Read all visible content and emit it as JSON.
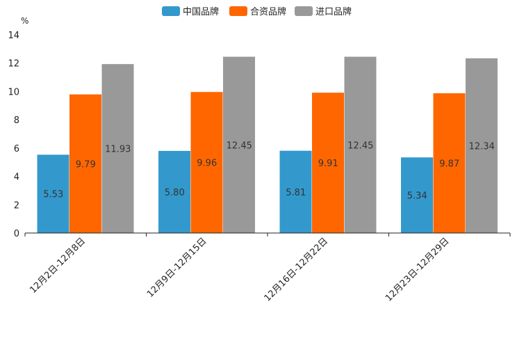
{
  "chart_data": {
    "type": "bar",
    "unit": "%",
    "ylim": [
      0,
      14
    ],
    "yticks": [
      0,
      2,
      4,
      6,
      8,
      10,
      12,
      14
    ],
    "legend_position": "top-center",
    "categories": [
      "12月2日-12月8日",
      "12月9日-12月15日",
      "12月16日-12月22日",
      "12月23日-12月29日"
    ],
    "series": [
      {
        "name": "中国品牌",
        "color": "#3399cc",
        "values": [
          5.53,
          5.8,
          5.81,
          5.34
        ],
        "labels": [
          "5.53",
          "5.80",
          "5.81",
          "5.34"
        ]
      },
      {
        "name": "合资品牌",
        "color": "#ff6600",
        "values": [
          9.79,
          9.96,
          9.91,
          9.87
        ],
        "labels": [
          "9.79",
          "9.96",
          "9.91",
          "9.87"
        ]
      },
      {
        "name": "进口品牌",
        "color": "#999999",
        "values": [
          11.93,
          12.45,
          12.45,
          12.34
        ],
        "labels": [
          "11.93",
          "12.45",
          "12.45",
          "12.34"
        ]
      }
    ]
  }
}
